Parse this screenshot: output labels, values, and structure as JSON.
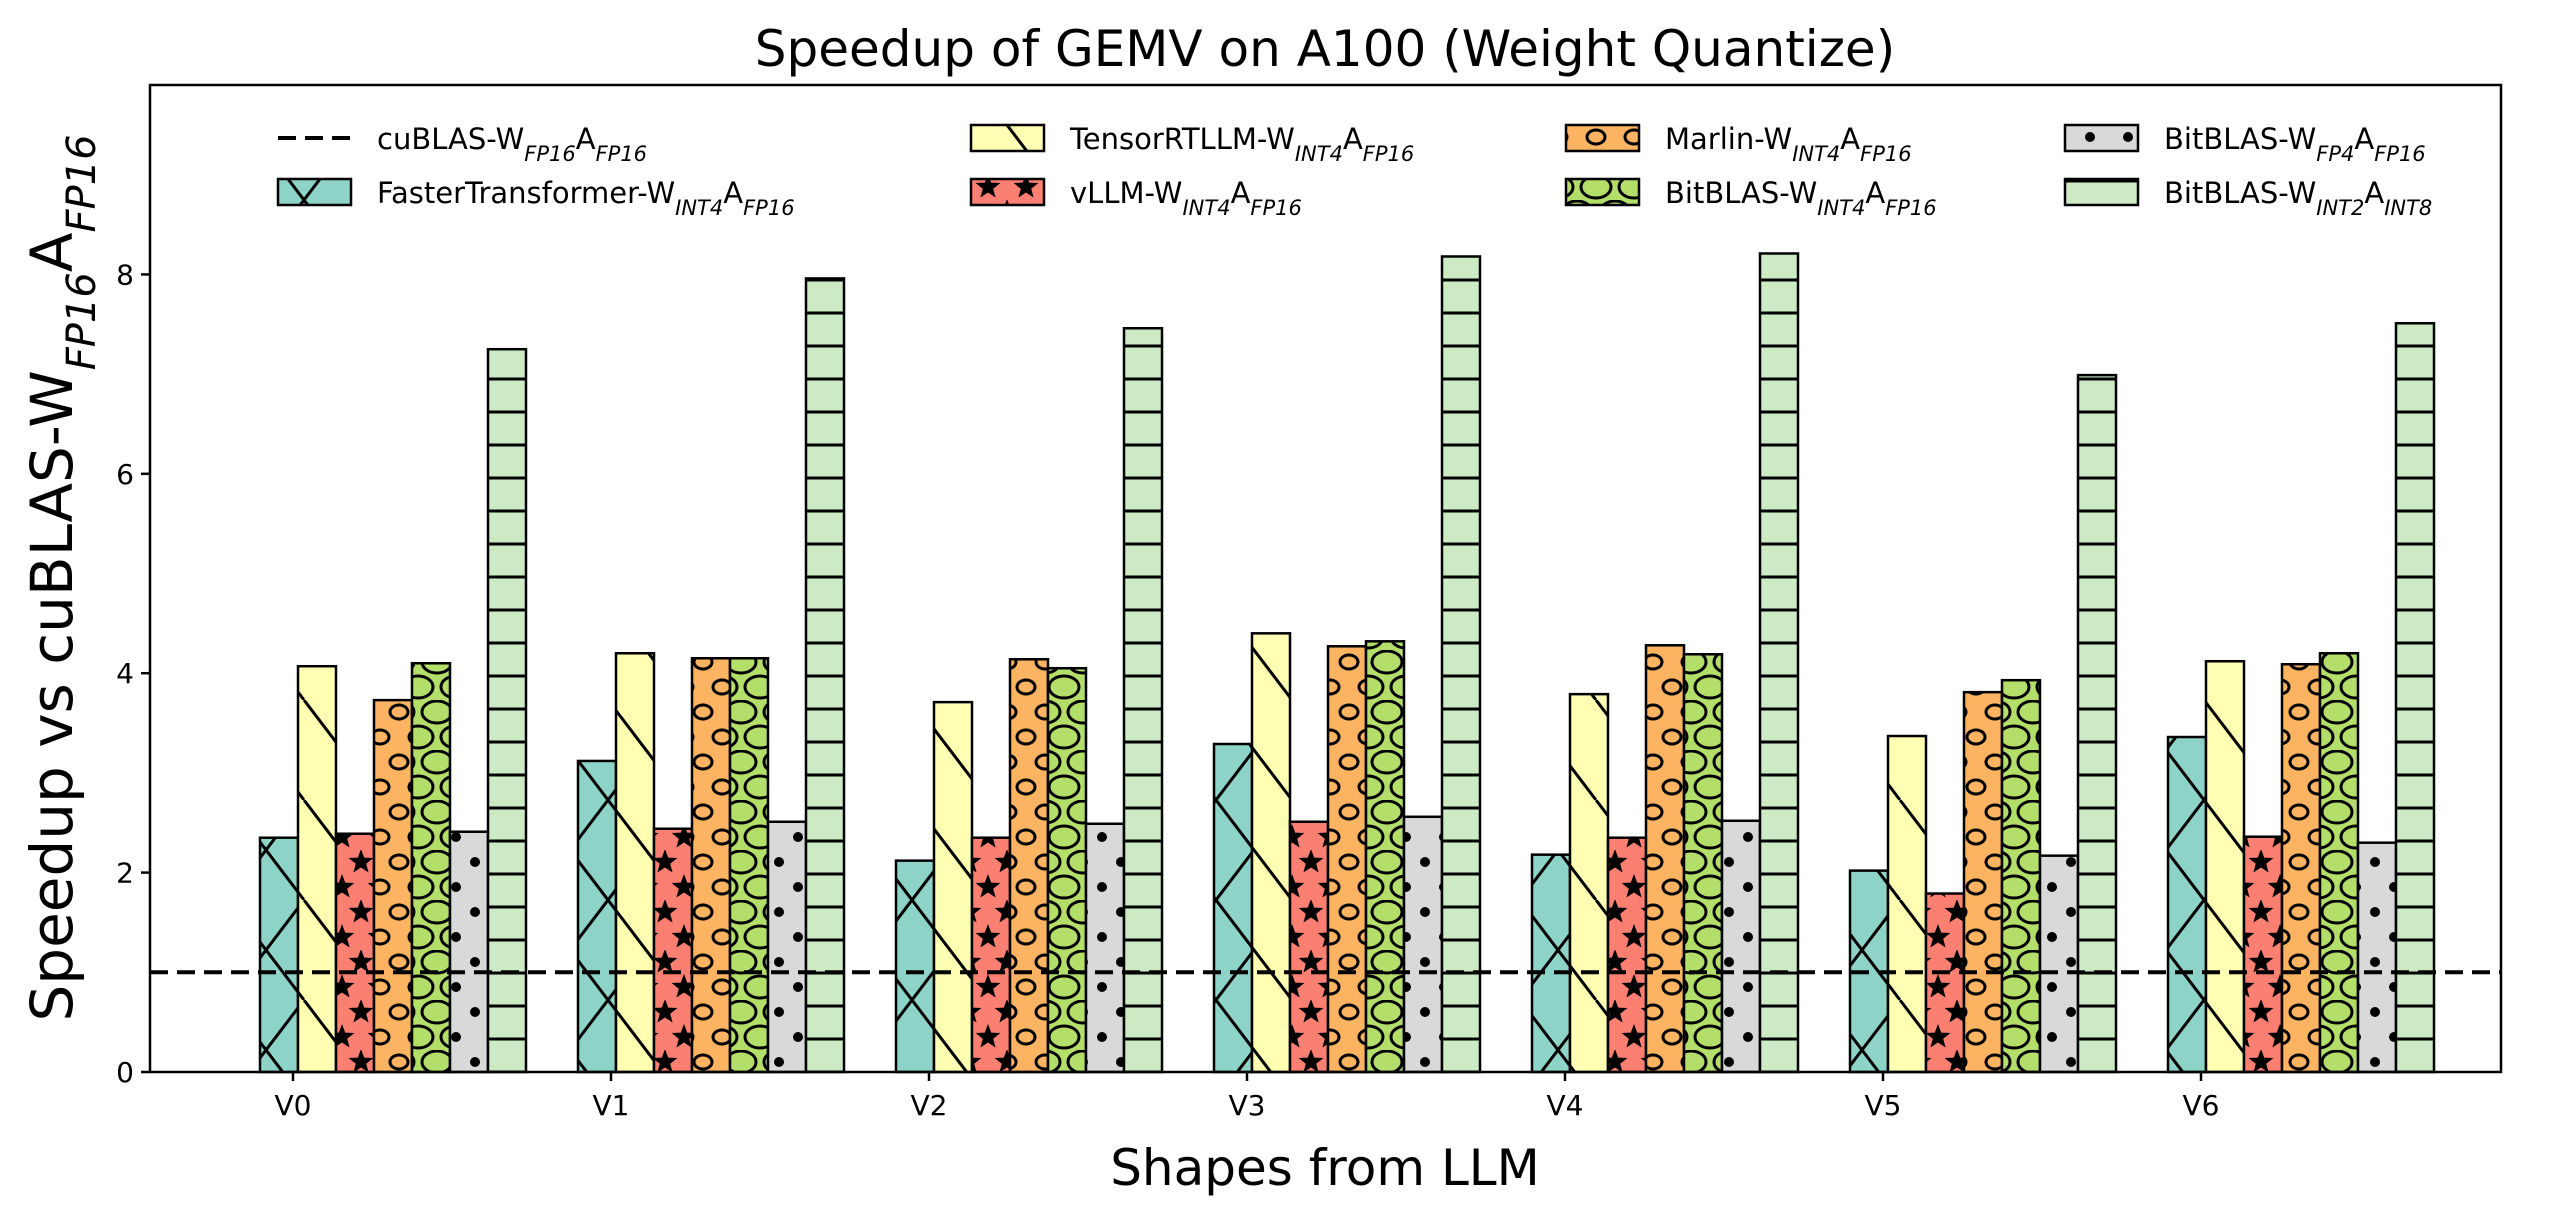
{
  "chart_data": {
    "type": "bar",
    "title": "Speedup of GEMV on A100 (Weight Quantize)",
    "xlabel": "Shapes from LLM",
    "ylabel": {
      "main": "Speedup vs cuBLAS-W",
      "sub1": "FP16",
      "mid": "A",
      "sub2": "FP16"
    },
    "categories": [
      "V0",
      "V1",
      "V2",
      "V3",
      "V4",
      "V5",
      "V6"
    ],
    "ylim": [
      0,
      9.9
    ],
    "yticks": [
      0,
      2,
      4,
      6,
      8
    ],
    "grid": false,
    "legend_placement": "top",
    "baseline": {
      "value": 1.0,
      "style": "dashed",
      "label": {
        "main": "cuBLAS-W",
        "sub1": "FP16",
        "mid": "A",
        "sub2": "FP16"
      }
    },
    "series": [
      {
        "name": {
          "main": "FasterTransformer-W",
          "sub1": "INT4",
          "mid": "A",
          "sub2": "FP16"
        },
        "color": "#8dd3c7",
        "hatch": "x",
        "values": [
          2.35,
          3.12,
          2.12,
          3.29,
          2.18,
          2.02,
          3.36
        ]
      },
      {
        "name": {
          "main": "TensorRTLLM-W",
          "sub1": "INT4",
          "mid": "A",
          "sub2": "FP16"
        },
        "color": "#ffffb3",
        "hatch": "backslash",
        "values": [
          4.07,
          4.2,
          3.71,
          4.4,
          3.79,
          3.37,
          4.12
        ]
      },
      {
        "name": {
          "main": "vLLM-W",
          "sub1": "INT4",
          "mid": "A",
          "sub2": "FP16"
        },
        "color": "#fb8072",
        "hatch": "star",
        "values": [
          2.39,
          2.44,
          2.35,
          2.51,
          2.35,
          1.79,
          2.36
        ]
      },
      {
        "name": {
          "main": "Marlin-W",
          "sub1": "INT4",
          "mid": "A",
          "sub2": "FP16"
        },
        "color": "#fdb462",
        "hatch": "small-circle",
        "values": [
          3.73,
          4.15,
          4.14,
          4.27,
          4.28,
          3.81,
          4.09
        ]
      },
      {
        "name": {
          "main": "BitBLAS-W",
          "sub1": "INT4",
          "mid": "A",
          "sub2": "FP16"
        },
        "color": "#b3de69",
        "hatch": "large-circle",
        "values": [
          4.1,
          4.15,
          4.05,
          4.32,
          4.19,
          3.93,
          4.2
        ]
      },
      {
        "name": {
          "main": "BitBLAS-W",
          "sub1": "FP4",
          "mid": "A",
          "sub2": "FP16"
        },
        "color": "#d9d9d9",
        "hatch": "dot",
        "values": [
          2.41,
          2.51,
          2.49,
          2.56,
          2.52,
          2.17,
          2.3
        ]
      },
      {
        "name": {
          "main": "BitBLAS-W",
          "sub1": "INT2",
          "mid": "A",
          "sub2": "INT8"
        },
        "color": "#ccebc5",
        "hatch": "horizontal",
        "values": [
          7.25,
          7.96,
          7.46,
          8.18,
          8.21,
          6.99,
          7.51
        ]
      }
    ]
  }
}
